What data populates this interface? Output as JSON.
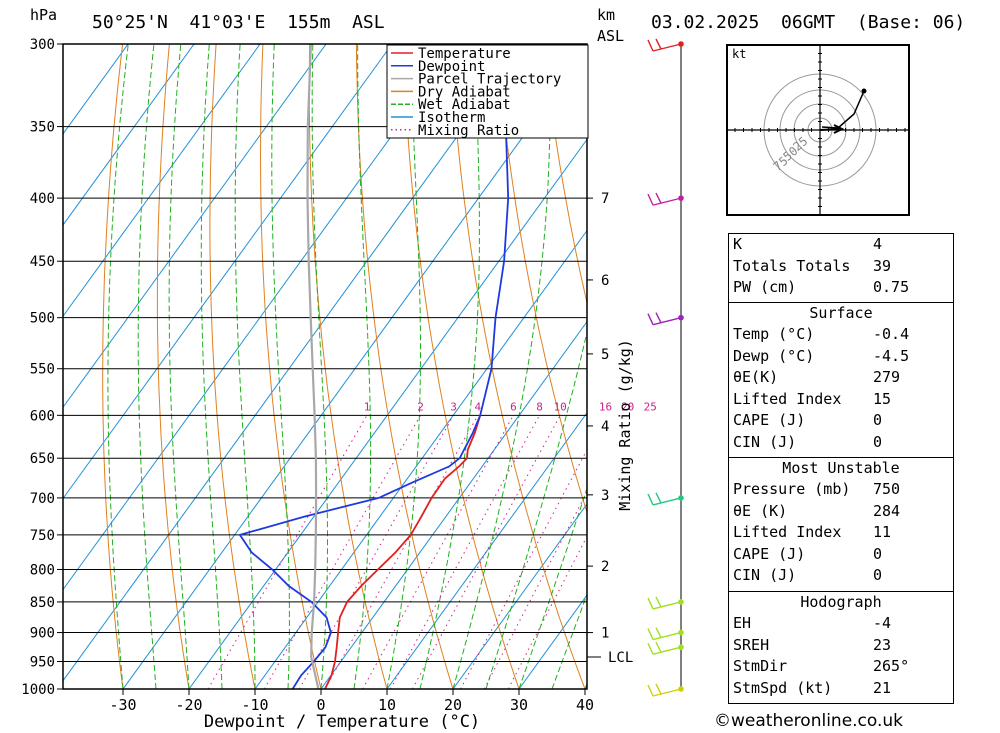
{
  "header": {
    "pressure_unit": "hPa",
    "location": "50°25'N  41°03'E  155m  ASL",
    "km_label": "km",
    "asl_label": "ASL",
    "datetime": "03.02.2025  06GMT  (Base: 06)"
  },
  "chart_data": {
    "type": "skew-t",
    "xlabel": "Dewpoint / Temperature (°C)",
    "ylabel": "hPa",
    "right_axis_label": "Mixing Ratio (g/kg)",
    "pressure_levels": [
      300,
      350,
      400,
      450,
      500,
      550,
      600,
      650,
      700,
      750,
      800,
      850,
      900,
      950,
      1000
    ],
    "x_ticks": [
      -30,
      -20,
      -10,
      0,
      10,
      20,
      30,
      40
    ],
    "km_ticks": [
      {
        "km": "1",
        "p": 900
      },
      {
        "km": "2",
        "p": 795
      },
      {
        "km": "3",
        "p": 696
      },
      {
        "km": "4",
        "p": 612
      },
      {
        "km": "5",
        "p": 535
      },
      {
        "km": "6",
        "p": 466
      },
      {
        "km": "7",
        "p": 400
      }
    ],
    "lcl": {
      "label": "LCL",
      "p": 942
    },
    "mixing_ratio_labels": [
      "1",
      "2",
      "3",
      "4",
      "6",
      "8",
      "10",
      "16",
      "20",
      "25"
    ],
    "legend": {
      "placement": "top-right",
      "entries": [
        {
          "name": "Temperature",
          "color": "#e02020",
          "style": "solid"
        },
        {
          "name": "Dewpoint",
          "color": "#1d3adf",
          "style": "solid"
        },
        {
          "name": "Parcel Trajectory",
          "color": "#a8a8a8",
          "style": "solid"
        },
        {
          "name": "Dry Adiabat",
          "color": "#e08020",
          "style": "solid"
        },
        {
          "name": "Wet Adiabat",
          "color": "#20b020",
          "style": "dashed"
        },
        {
          "name": "Isotherm",
          "color": "#2090d8",
          "style": "solid"
        },
        {
          "name": "Mixing Ratio",
          "color": "#d02090",
          "style": "dotted"
        }
      ]
    },
    "series": [
      {
        "name": "Temperature",
        "points": [
          [
            1000,
            0.6
          ],
          [
            975,
            0.1
          ],
          [
            950,
            -0.9
          ],
          [
            925,
            -2.2
          ],
          [
            900,
            -3.6
          ],
          [
            875,
            -5.0
          ],
          [
            850,
            -5.6
          ],
          [
            825,
            -5.2
          ],
          [
            800,
            -4.5
          ],
          [
            775,
            -3.7
          ],
          [
            750,
            -3.3
          ],
          [
            725,
            -3.7
          ],
          [
            700,
            -4.2
          ],
          [
            675,
            -4.3
          ],
          [
            660,
            -3.5
          ],
          [
            650,
            -3.2
          ],
          [
            640,
            -4.0
          ],
          [
            620,
            -4.8
          ],
          [
            600,
            -5.9
          ]
        ]
      },
      {
        "name": "Dewpoint",
        "points": [
          [
            1000,
            -4.3
          ],
          [
            975,
            -4.5
          ],
          [
            950,
            -4.1
          ],
          [
            925,
            -3.9
          ],
          [
            900,
            -4.7
          ],
          [
            875,
            -7.0
          ],
          [
            850,
            -11.0
          ],
          [
            825,
            -16.2
          ],
          [
            800,
            -20.5
          ],
          [
            775,
            -25.5
          ],
          [
            750,
            -29.2
          ],
          [
            725,
            -21.5
          ],
          [
            700,
            -12.2
          ],
          [
            680,
            -8.8
          ],
          [
            660,
            -5.0
          ],
          [
            650,
            -4.3
          ],
          [
            620,
            -5.1
          ],
          [
            600,
            -5.9
          ],
          [
            550,
            -9.3
          ],
          [
            500,
            -14.3
          ],
          [
            450,
            -19.2
          ],
          [
            400,
            -25.5
          ],
          [
            350,
            -33.7
          ],
          [
            300,
            -41.3
          ]
        ]
      },
      {
        "name": "Parcel Trajectory",
        "points": [
          [
            1000,
            -0.4
          ],
          [
            942,
            -5.0
          ],
          [
            900,
            -7.6
          ],
          [
            850,
            -10.6
          ],
          [
            800,
            -14.0
          ],
          [
            750,
            -17.7
          ],
          [
            700,
            -21.7
          ],
          [
            650,
            -26.1
          ],
          [
            600,
            -31.0
          ],
          [
            550,
            -36.4
          ],
          [
            500,
            -42.3
          ],
          [
            450,
            -48.8
          ],
          [
            400,
            -55.9
          ],
          [
            350,
            -63.7
          ],
          [
            300,
            -72.3
          ]
        ]
      }
    ],
    "wind_barbs": [
      {
        "p": 1000,
        "color": "#d0d000"
      },
      {
        "p": 925,
        "color": "#a0e020"
      },
      {
        "p": 900,
        "color": "#a0e020"
      },
      {
        "p": 850,
        "color": "#a0e020"
      },
      {
        "p": 700,
        "color": "#20c880"
      },
      {
        "p": 500,
        "color": "#a020c0"
      },
      {
        "p": 400,
        "color": "#c020a0"
      },
      {
        "p": 300,
        "color": "#e02020"
      }
    ],
    "hodograph": {
      "unit_label": "kt",
      "ring_labels": [
        "25",
        "50",
        "75"
      ]
    }
  },
  "indices": {
    "rows": [
      {
        "k": "K",
        "v": "4"
      },
      {
        "k": "Totals Totals",
        "v": "39"
      },
      {
        "k": "PW (cm)",
        "v": "0.75"
      }
    ]
  },
  "surface": {
    "title": "Surface",
    "rows": [
      {
        "k": "Temp (°C)",
        "v": "-0.4"
      },
      {
        "k": "Dewp (°C)",
        "v": "-4.5"
      },
      {
        "k": "θE(K)",
        "v": "279"
      },
      {
        "k": "Lifted Index",
        "v": "15"
      },
      {
        "k": "CAPE (J)",
        "v": "0"
      },
      {
        "k": "CIN (J)",
        "v": "0"
      }
    ]
  },
  "most_unstable": {
    "title": "Most Unstable",
    "rows": [
      {
        "k": "Pressure (mb)",
        "v": "750"
      },
      {
        "k": "θE (K)",
        "v": "284"
      },
      {
        "k": "Lifted Index",
        "v": "11"
      },
      {
        "k": "CAPE (J)",
        "v": "0"
      },
      {
        "k": "CIN (J)",
        "v": "0"
      }
    ]
  },
  "hodograph_table": {
    "title": "Hodograph",
    "rows": [
      {
        "k": "EH",
        "v": "-4"
      },
      {
        "k": "SREH",
        "v": "23"
      },
      {
        "k": "StmDir",
        "v": "265°"
      },
      {
        "k": "StmSpd (kt)",
        "v": "21"
      }
    ]
  },
  "footer": "©weatheronline.co.uk"
}
